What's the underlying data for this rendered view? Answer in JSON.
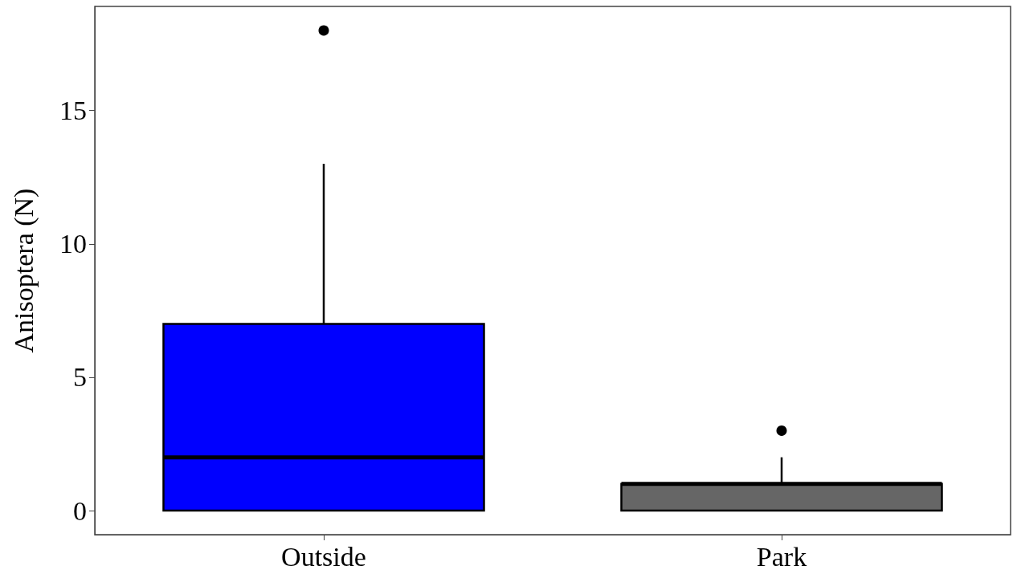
{
  "chart_data": {
    "type": "box",
    "ylabel": "Anisoptera (N)",
    "categories": [
      "Outside",
      "Park"
    ],
    "boxes": [
      {
        "low": 0,
        "q1": 0,
        "median": 2,
        "q3": 7,
        "high": 13,
        "outliers": [
          18
        ]
      },
      {
        "low": 0,
        "q1": 0,
        "median": 1,
        "q3": 1,
        "high": 2,
        "outliers": [
          3
        ]
      }
    ],
    "colors": [
      "#0000ff",
      "#666666"
    ],
    "ylim": [
      -0.9,
      18.9
    ],
    "yticks": [
      0,
      5,
      10,
      15
    ],
    "grid": false
  }
}
